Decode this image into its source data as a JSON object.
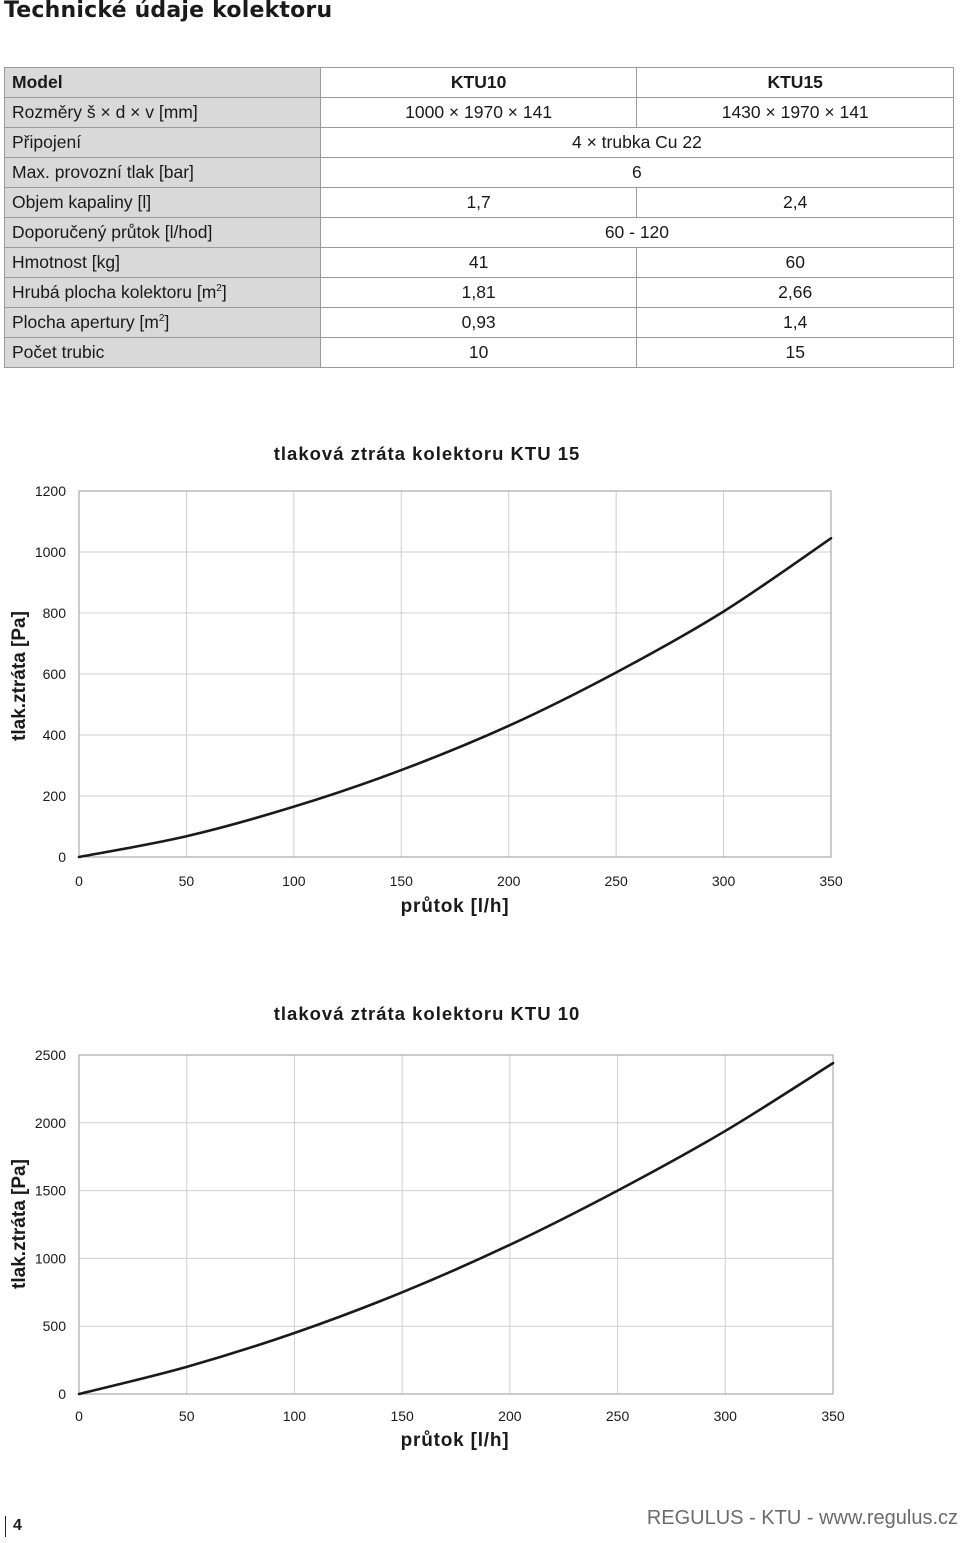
{
  "page": {
    "title": "Technické údaje kolektoru",
    "page_number": "4",
    "footer": "REGULUS - KTU - www.regulus.cz"
  },
  "spec_table": {
    "header": {
      "label": "Model",
      "col1": "KTU10",
      "col2": "KTU15"
    },
    "rows": [
      {
        "label": "Rozměry š × d × v [mm]",
        "v1": "1000 × 1970 × 141",
        "v2": "1430 × 1970 × 141"
      },
      {
        "label": "Připojení",
        "merged": "4 × trubka Cu 22"
      },
      {
        "label": "Max. provozní tlak [bar]",
        "merged": "6"
      },
      {
        "label": "Objem kapaliny [l]",
        "v1": "1,7",
        "v2": "2,4"
      },
      {
        "label": "Doporučený průtok [l/hod]",
        "merged": "60 - 120"
      },
      {
        "label": "Hmotnost [kg]",
        "v1": "41",
        "v2": "60"
      },
      {
        "label": "Hrubá plocha kolektoru [m",
        "sup": "2",
        "label_end": "]",
        "v1": "1,81",
        "v2": "2,66"
      },
      {
        "label": "Plocha apertury [m",
        "sup": "2",
        "label_end": "]",
        "v1": "0,93",
        "v2": "1,4"
      },
      {
        "label": "Počet trubic",
        "v1": "10",
        "v2": "15"
      }
    ]
  },
  "chart_data": [
    {
      "type": "line",
      "title": "tlaková ztráta kolektoru KTU 15",
      "xlabel": "průtok [l/h]",
      "ylabel": "tlak.ztráta [Pa]",
      "xlim": [
        0,
        350
      ],
      "ylim": [
        0,
        1200
      ],
      "x_ticks": [
        0,
        50,
        100,
        150,
        200,
        250,
        300,
        350
      ],
      "y_ticks": [
        0,
        200,
        400,
        600,
        800,
        1000,
        1200
      ],
      "grid": true,
      "series": [
        {
          "x": [
            0,
            50,
            100,
            150,
            200,
            250,
            300,
            350
          ],
          "y": [
            0,
            68,
            165,
            285,
            430,
            605,
            805,
            1045
          ],
          "color": "#1a1a1a"
        }
      ]
    },
    {
      "type": "line",
      "title": "tlaková ztráta kolektoru KTU 10",
      "xlabel": "průtok [l/h]",
      "ylabel": "tlak.ztráta [Pa]",
      "xlim": [
        0,
        350
      ],
      "ylim": [
        0,
        2500
      ],
      "x_ticks": [
        0,
        50,
        100,
        150,
        200,
        250,
        300,
        350
      ],
      "y_ticks": [
        0,
        500,
        1000,
        1500,
        2000,
        2500
      ],
      "grid": true,
      "series": [
        {
          "x": [
            0,
            50,
            100,
            150,
            200,
            250,
            300,
            350
          ],
          "y": [
            0,
            200,
            450,
            750,
            1100,
            1500,
            1940,
            2440
          ],
          "color": "#1a1a1a"
        }
      ]
    }
  ]
}
